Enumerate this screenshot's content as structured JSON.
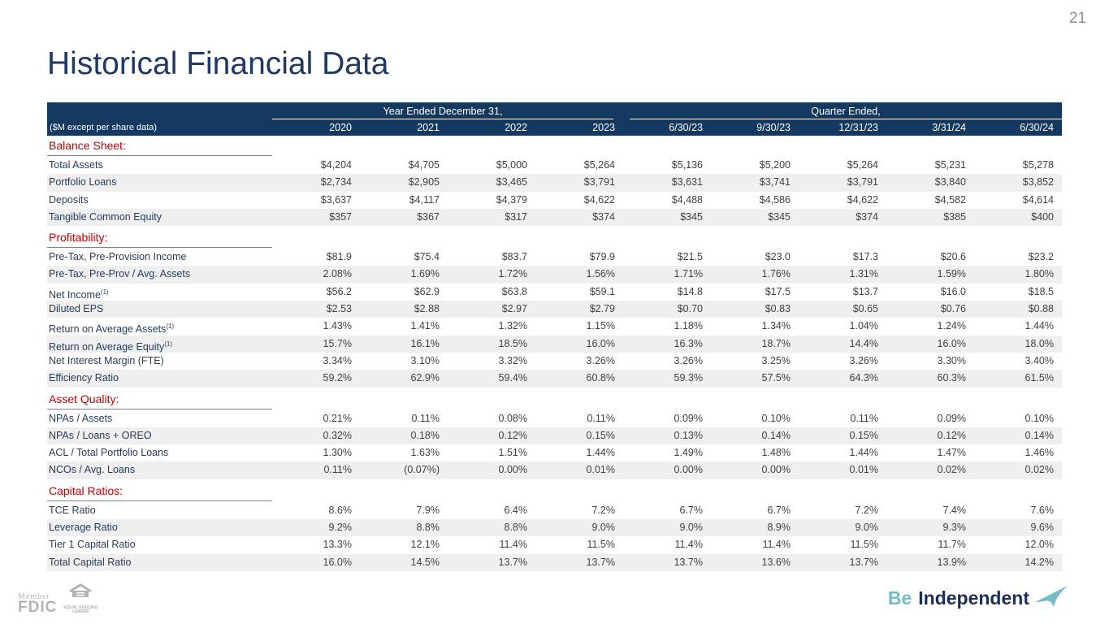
{
  "page_number": "21",
  "title": "Historical Financial Data",
  "table": {
    "unit_note": "($M except per share data)",
    "group_year_header": "Year Ended December 31,",
    "group_quarter_header": "Quarter Ended,",
    "columns": [
      "2020",
      "2021",
      "2022",
      "2023",
      "6/30/23",
      "9/30/23",
      "12/31/23",
      "3/31/24",
      "6/30/24"
    ],
    "sections": [
      {
        "label": "Balance Sheet:",
        "rows": [
          {
            "label": "Total Assets",
            "sup": "",
            "values": [
              "$4,204",
              "$4,705",
              "$5,000",
              "$5,264",
              "$5,136",
              "$5,200",
              "$5,264",
              "$5,231",
              "$5,278"
            ]
          },
          {
            "label": "Portfolio Loans",
            "sup": "",
            "values": [
              "$2,734",
              "$2,905",
              "$3,465",
              "$3,791",
              "$3,631",
              "$3,741",
              "$3,791",
              "$3,840",
              "$3,852"
            ]
          },
          {
            "label": "Deposits",
            "sup": "",
            "values": [
              "$3,637",
              "$4,117",
              "$4,379",
              "$4,622",
              "$4,488",
              "$4,586",
              "$4,622",
              "$4,582",
              "$4,614"
            ]
          },
          {
            "label": "Tangible Common Equity",
            "sup": "",
            "values": [
              "$357",
              "$367",
              "$317",
              "$374",
              "$345",
              "$345",
              "$374",
              "$385",
              "$400"
            ]
          }
        ]
      },
      {
        "label": "Profitability:",
        "rows": [
          {
            "label": "Pre-Tax, Pre-Provision Income",
            "sup": "",
            "values": [
              "$81.9",
              "$75.4",
              "$83.7",
              "$79.9",
              "$21.5",
              "$23.0",
              "$17.3",
              "$20.6",
              "$23.2"
            ]
          },
          {
            "label": "Pre-Tax, Pre-Prov / Avg. Assets",
            "sup": "",
            "values": [
              "2.08%",
              "1.69%",
              "1.72%",
              "1.56%",
              "1.71%",
              "1.76%",
              "1.31%",
              "1.59%",
              "1.80%"
            ]
          },
          {
            "label": "Net Income",
            "sup": "(1)",
            "values": [
              "$56.2",
              "$62.9",
              "$63.8",
              "$59.1",
              "$14.8",
              "$17.5",
              "$13.7",
              "$16.0",
              "$18.5"
            ]
          },
          {
            "label": "Diluted EPS",
            "sup": "",
            "values": [
              "$2.53",
              "$2.88",
              "$2.97",
              "$2.79",
              "$0.70",
              "$0.83",
              "$0.65",
              "$0.76",
              "$0.88"
            ]
          },
          {
            "label": "Return on Average Assets",
            "sup": "(1)",
            "values": [
              "1.43%",
              "1.41%",
              "1.32%",
              "1.15%",
              "1.18%",
              "1.34%",
              "1.04%",
              "1.24%",
              "1.44%"
            ]
          },
          {
            "label": "Return on Average Equity",
            "sup": "(1)",
            "values": [
              "15.7%",
              "16.1%",
              "18.5%",
              "16.0%",
              "16.3%",
              "18.7%",
              "14.4%",
              "16.0%",
              "18.0%"
            ]
          },
          {
            "label": "Net Interest Margin (FTE)",
            "sup": "",
            "values": [
              "3.34%",
              "3.10%",
              "3.32%",
              "3.26%",
              "3.26%",
              "3.25%",
              "3.26%",
              "3.30%",
              "3.40%"
            ]
          },
          {
            "label": "Efficiency Ratio",
            "sup": "",
            "values": [
              "59.2%",
              "62.9%",
              "59.4%",
              "60.8%",
              "59.3%",
              "57.5%",
              "64.3%",
              "60.3%",
              "61.5%"
            ]
          }
        ]
      },
      {
        "label": "Asset Quality:",
        "rows": [
          {
            "label": "NPAs / Assets",
            "sup": "",
            "values": [
              "0.21%",
              "0.11%",
              "0.08%",
              "0.11%",
              "0.09%",
              "0.10%",
              "0.11%",
              "0.09%",
              "0.10%"
            ]
          },
          {
            "label": "NPAs / Loans + OREO",
            "sup": "",
            "values": [
              "0.32%",
              "0.18%",
              "0.12%",
              "0.15%",
              "0.13%",
              "0.14%",
              "0.15%",
              "0.12%",
              "0.14%"
            ]
          },
          {
            "label": "ACL / Total Portfolio Loans",
            "sup": "",
            "values": [
              "1.30%",
              "1.63%",
              "1.51%",
              "1.44%",
              "1.49%",
              "1.48%",
              "1.44%",
              "1.47%",
              "1.46%"
            ]
          },
          {
            "label": "NCOs / Avg. Loans",
            "sup": "",
            "values": [
              "0.11%",
              "(0.07%)",
              "0.00%",
              "0.01%",
              "0.00%",
              "0.00%",
              "0.01%",
              "0.02%",
              "0.02%"
            ]
          }
        ]
      },
      {
        "label": "Capital Ratios:",
        "rows": [
          {
            "label": "TCE Ratio",
            "sup": "",
            "values": [
              "8.6%",
              "7.9%",
              "6.4%",
              "7.2%",
              "6.7%",
              "6.7%",
              "7.2%",
              "7.4%",
              "7.6%"
            ]
          },
          {
            "label": "Leverage Ratio",
            "sup": "",
            "values": [
              "9.2%",
              "8.8%",
              "8.8%",
              "9.0%",
              "9.0%",
              "8.9%",
              "9.0%",
              "9.3%",
              "9.6%"
            ]
          },
          {
            "label": "Tier 1 Capital Ratio",
            "sup": "",
            "values": [
              "13.3%",
              "12.1%",
              "11.4%",
              "11.5%",
              "11.4%",
              "11.4%",
              "11.5%",
              "11.7%",
              "12.0%"
            ]
          },
          {
            "label": "Total Capital Ratio",
            "sup": "",
            "values": [
              "16.0%",
              "14.5%",
              "13.7%",
              "13.7%",
              "13.7%",
              "13.6%",
              "13.7%",
              "13.9%",
              "14.2%"
            ]
          }
        ]
      }
    ]
  },
  "footer": {
    "member_label": "Member",
    "fdic_label": "FDIC",
    "equal_housing_line1": "EQUAL HOUSING",
    "equal_housing_line2": "LENDER",
    "tagline_be": "Be",
    "tagline_independent": "Independent"
  },
  "colors": {
    "header_navy": "#133960",
    "title_navy": "#1f3864",
    "section_red": "#c00000",
    "stripe_gray": "#efefef",
    "teal": "#74bcc8",
    "footer_gray": "#b2b2b2"
  }
}
